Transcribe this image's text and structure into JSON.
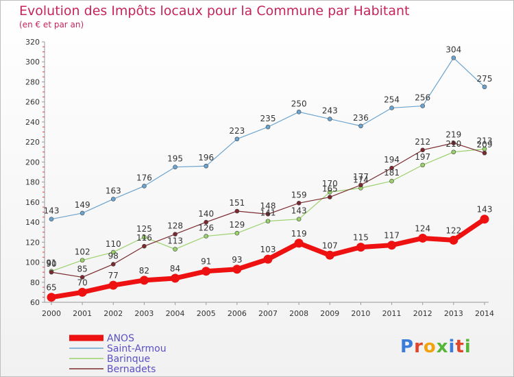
{
  "header": {
    "title": "Evolution des Impôts locaux pour la Commune par Habitant",
    "subtitle": "(en € et par an)"
  },
  "logo": {
    "text": "Proxiti"
  },
  "colors": {
    "title": "#c5245a",
    "ANOS": "#ee1111",
    "Saint-Armou": "#6aa3cf",
    "Barinque": "#9ad16a",
    "Bernadets": "#7a2a2f"
  },
  "chart_data": {
    "type": "line",
    "title": "Evolution des Impôts locaux pour la Commune par Habitant",
    "subtitle": "(en € et par an)",
    "x": [
      "2000",
      "2001",
      "2002",
      "2003",
      "2004",
      "2005",
      "2006",
      "2007",
      "2008",
      "2009",
      "2010",
      "2011",
      "2012",
      "2013",
      "2014"
    ],
    "ylim": [
      60,
      320
    ],
    "yticks": [
      60,
      80,
      100,
      120,
      140,
      160,
      180,
      200,
      220,
      240,
      260,
      280,
      300,
      320
    ],
    "grid": false,
    "legend_position": "bottom-left",
    "series": [
      {
        "name": "ANOS",
        "color": "#ee1111",
        "emphasis": true,
        "values": [
          65,
          70,
          77,
          82,
          84,
          91,
          93,
          103,
          119,
          107,
          115,
          117,
          124,
          122,
          143
        ]
      },
      {
        "name": "Saint-Armou",
        "color": "#6aa3cf",
        "emphasis": false,
        "values": [
          143,
          149,
          163,
          176,
          195,
          196,
          223,
          235,
          250,
          243,
          236,
          254,
          256,
          304,
          275
        ]
      },
      {
        "name": "Barinque",
        "color": "#9ad16a",
        "emphasis": false,
        "values": [
          91,
          102,
          110,
          125,
          113,
          126,
          129,
          141,
          143,
          170,
          174,
          181,
          197,
          210,
          213
        ]
      },
      {
        "name": "Bernadets",
        "color": "#7a2a2f",
        "emphasis": false,
        "values": [
          90,
          85,
          98,
          116,
          128,
          140,
          151,
          148,
          159,
          165,
          177,
          194,
          212,
          219,
          209
        ]
      }
    ]
  }
}
